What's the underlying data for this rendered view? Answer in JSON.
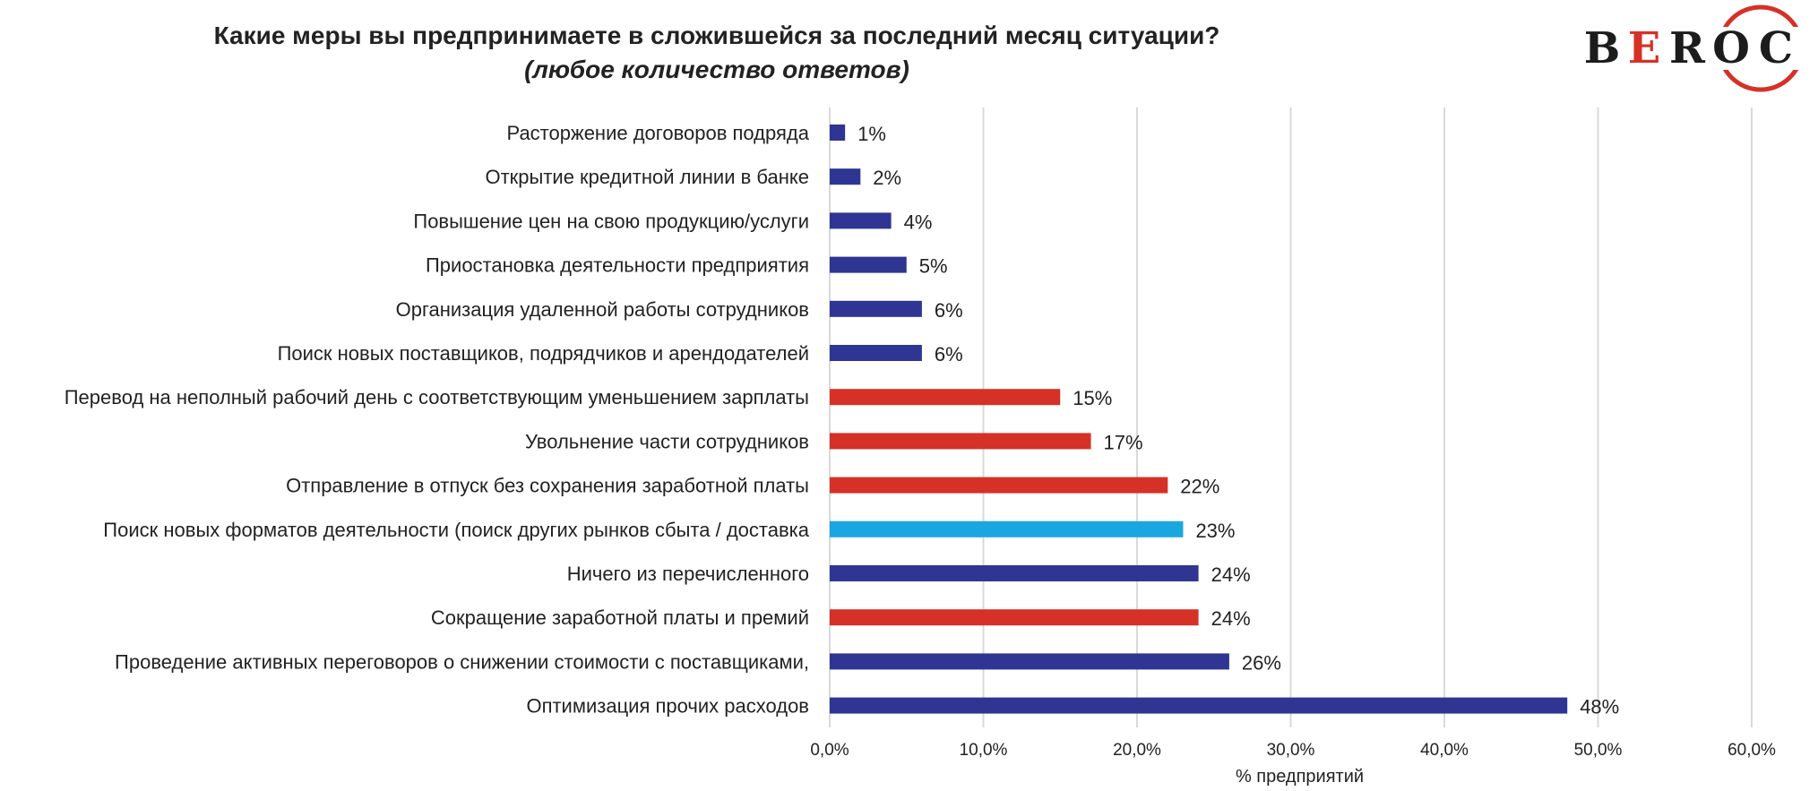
{
  "chart_data": {
    "type": "bar",
    "orientation": "horizontal",
    "title": "Какие меры вы предпринимаете в сложившейся за последний месяц ситуации?",
    "subtitle": "(любое количество ответов)",
    "xlabel": "% предприятий",
    "xlim": [
      0,
      60
    ],
    "xticks": [
      0,
      10,
      20,
      30,
      40,
      50,
      60
    ],
    "xtick_labels": [
      "0,0%",
      "10,0%",
      "20,0%",
      "30,0%",
      "40,0%",
      "50,0%",
      "60,0%"
    ],
    "grid": "vertical",
    "categories": [
      "Расторжение договоров подряда",
      "Открытие кредитной линии в банке",
      "Повышение цен на свою продукцию/услуги",
      "Приостановка деятельности предприятия",
      "Организация удаленной работы сотрудников",
      "Поиск новых поставщиков, подрядчиков и арендодателей",
      "Перевод на неполный рабочий день с соответствующим уменьшением зарплаты",
      "Увольнение части сотрудников",
      "Отправление в отпуск без сохранения заработной платы",
      "Поиск новых форматов деятельности (поиск других рынков сбыта / доставка",
      "Ничего из перечисленного",
      "Сокращение заработной платы и премий",
      "Проведение активных переговоров о снижении стоимости с поставщиками,",
      "Оптимизация прочих расходов"
    ],
    "values": [
      1,
      2,
      4,
      5,
      6,
      6,
      15,
      17,
      22,
      23,
      24,
      24,
      26,
      48
    ],
    "value_labels": [
      "1%",
      "2%",
      "4%",
      "5%",
      "6%",
      "6%",
      "15%",
      "17%",
      "22%",
      "23%",
      "24%",
      "24%",
      "26%",
      "48%"
    ],
    "bar_colors": [
      "#2e3592",
      "#2e3592",
      "#2e3592",
      "#2e3592",
      "#2e3592",
      "#2e3592",
      "#d63127",
      "#d63127",
      "#d63127",
      "#1aa7e0",
      "#2e3592",
      "#d63127",
      "#2e3592",
      "#2e3592"
    ]
  },
  "logo": {
    "letters": [
      "B",
      "E",
      "R",
      "O",
      "C"
    ],
    "letter_colors": [
      "#1c1c1c",
      "#d63127",
      "#1c1c1c",
      "#1c1c1c",
      "#1c1c1c"
    ],
    "ring_color": "#d63127"
  },
  "colors": {
    "grid": "#d9d9d9",
    "text": "#222222"
  }
}
